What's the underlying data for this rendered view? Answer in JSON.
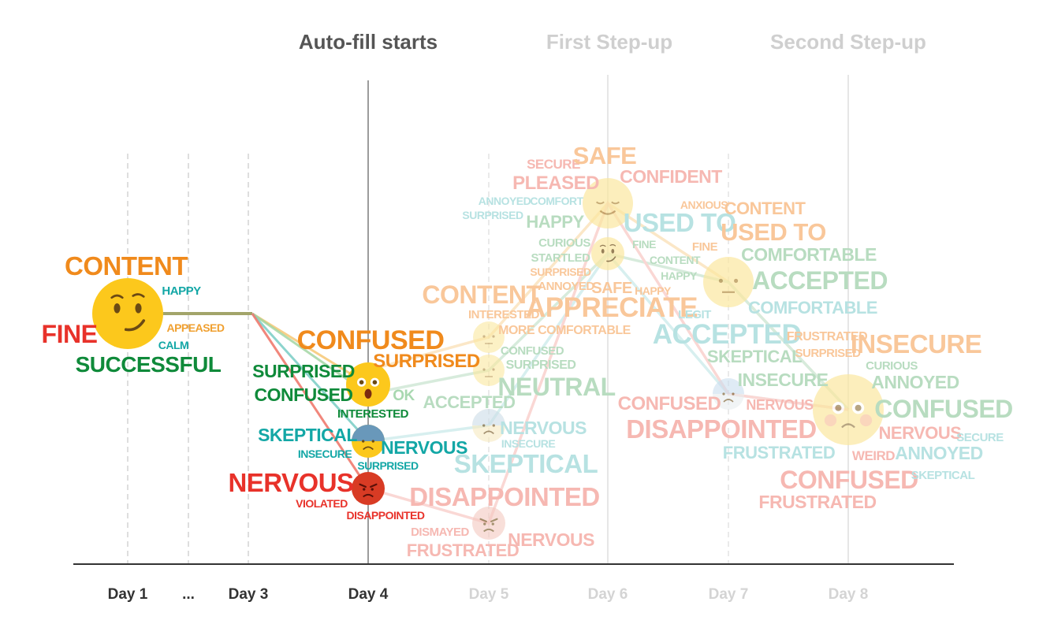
{
  "colors": {
    "orange": "#f08a1c",
    "red": "#e8322a",
    "green": "#0f8a3a",
    "teal": "#13a7a6",
    "olive": "#a2a46a",
    "axis": "#333333",
    "faded": "#cfcfcf"
  },
  "phases": [
    {
      "label": "Auto-fill starts",
      "color": "#555555"
    },
    {
      "label": "First Step-up",
      "color": "#cfcfcf"
    },
    {
      "label": "Second Step-up",
      "color": "#cfcfcf"
    }
  ],
  "days": [
    {
      "label": "Day 1",
      "color": "#333333"
    },
    {
      "label": "...",
      "color": "#333333"
    },
    {
      "label": "Day 3",
      "color": "#333333"
    },
    {
      "label": "Day 4",
      "color": "#333333"
    },
    {
      "label": "Day 5",
      "color": "#d4d4d4"
    },
    {
      "label": "Day 6",
      "color": "#d4d4d4"
    },
    {
      "label": "Day 7",
      "color": "#d4d4d4"
    },
    {
      "label": "Day 8",
      "color": "#d4d4d4"
    }
  ],
  "emojis": [
    {
      "name": "smirk-emoji-icon",
      "face": "smirk",
      "color": "#fcc81c"
    },
    {
      "name": "shocked-emoji-icon",
      "face": "shock",
      "color": "#fcc81c"
    },
    {
      "name": "anxious-emoji-icon",
      "face": "anxious",
      "color": "#fcc81c"
    },
    {
      "name": "angry-emoji-icon",
      "face": "angry",
      "color": "#d83b24"
    },
    {
      "name": "faded-neutral-emoji-1",
      "face": "neutral",
      "color": "#fbe8a0"
    },
    {
      "name": "faded-neutral-emoji-2",
      "face": "neutral",
      "color": "#fbe8a0"
    },
    {
      "name": "faded-anxious-emoji",
      "face": "anxious",
      "color": "#f8eac0"
    },
    {
      "name": "faded-angry-emoji",
      "face": "angry",
      "color": "#f4c9c0"
    },
    {
      "name": "faded-relieved-emoji",
      "face": "relieved",
      "color": "#fbe8a0"
    },
    {
      "name": "faded-smirk-emoji",
      "face": "smirk",
      "color": "#fbe8a0"
    },
    {
      "name": "faded-neutral-emoji-3",
      "face": "neutral",
      "color": "#fbe8a0"
    },
    {
      "name": "faded-anxious-emoji-2",
      "face": "anxious",
      "color": "#e8eef0"
    },
    {
      "name": "faded-worried-emoji",
      "face": "worried",
      "color": "#fbe8a0"
    }
  ],
  "words": [
    {
      "text": "CONTENT",
      "color": "#f08a1c"
    },
    {
      "text": "HAPPY",
      "color": "#13a7a6"
    },
    {
      "text": "FINE",
      "color": "#e8322a"
    },
    {
      "text": "APPEASED",
      "color": "#f0a030"
    },
    {
      "text": "CALM",
      "color": "#13a7a6"
    },
    {
      "text": "SUCCESSFUL",
      "color": "#0f8a3a"
    },
    {
      "text": "CONFUSED",
      "color": "#f08a1c"
    },
    {
      "text": "SURPRISED",
      "color": "#f08a1c"
    },
    {
      "text": "SURPRISED",
      "color": "#0f8a3a"
    },
    {
      "text": "CONFUSED",
      "color": "#0f8a3a"
    },
    {
      "text": "OK",
      "color": "#a8d8b0"
    },
    {
      "text": "INTERESTED",
      "color": "#0f8a3a"
    },
    {
      "text": "SKEPTICAL",
      "color": "#13a7a6"
    },
    {
      "text": "NERVOUS",
      "color": "#13a7a6"
    },
    {
      "text": "INSECURE",
      "color": "#13a7a6"
    },
    {
      "text": "SURPRISED",
      "color": "#13a7a6"
    },
    {
      "text": "NERVOUS",
      "color": "#e8322a"
    },
    {
      "text": "VIOLATED",
      "color": "#e8322a"
    },
    {
      "text": "DISAPPOINTED",
      "color": "#e8322a"
    },
    {
      "text": "SECURE",
      "color": "#f6b8b2"
    },
    {
      "text": "SAFE",
      "color": "#f9c79a"
    },
    {
      "text": "CONFIDENT",
      "color": "#f6b8b2"
    },
    {
      "text": "PLEASED",
      "color": "#f6b8b2"
    },
    {
      "text": "ANNOYED",
      "color": "#b7e2e2"
    },
    {
      "text": "COMFORT",
      "color": "#b7e2e2"
    },
    {
      "text": "SURPRISED",
      "color": "#b7e2e2"
    },
    {
      "text": "HAPPY",
      "color": "#b8dcc0"
    },
    {
      "text": "USED TO",
      "color": "#b7e2e2"
    },
    {
      "text": "CURIOUS",
      "color": "#b8dcc0"
    },
    {
      "text": "FINE",
      "color": "#b8dcc0"
    },
    {
      "text": "STARTLED",
      "color": "#b8dcc0"
    },
    {
      "text": "CONTENT",
      "color": "#b8dcc0"
    },
    {
      "text": "SURPRISED",
      "color": "#f9c79a"
    },
    {
      "text": "HAPPY",
      "color": "#b8dcc0"
    },
    {
      "text": "ANNOYED",
      "color": "#f9c79a"
    },
    {
      "text": "SAFE",
      "color": "#f9c79a"
    },
    {
      "text": "HAPPY",
      "color": "#f9c79a"
    },
    {
      "text": "CONTENT",
      "color": "#f9c79a"
    },
    {
      "text": "APPRECIATE",
      "color": "#f9c79a"
    },
    {
      "text": "INTERESTED",
      "color": "#f9c79a"
    },
    {
      "text": "MORE COMFORTABLE",
      "color": "#f9c79a"
    },
    {
      "text": "LEGIT",
      "color": "#b7e2e2"
    },
    {
      "text": "CONFUSED",
      "color": "#b8dcc0"
    },
    {
      "text": "SURPRISED",
      "color": "#b8dcc0"
    },
    {
      "text": "ACCEPTED",
      "color": "#b8dcc0"
    },
    {
      "text": "NEUTRAL",
      "color": "#b8dcc0"
    },
    {
      "text": "NERVOUS",
      "color": "#b7e2e2"
    },
    {
      "text": "INSECURE",
      "color": "#b7e2e2"
    },
    {
      "text": "SKEPTICAL",
      "color": "#b7e2e2"
    },
    {
      "text": "DISAPPOINTED",
      "color": "#f6b8b2"
    },
    {
      "text": "DISMAYED",
      "color": "#f6b8b2"
    },
    {
      "text": "FRUSTRATED",
      "color": "#f6b8b2"
    },
    {
      "text": "NERVOUS",
      "color": "#f6b8b2"
    },
    {
      "text": "ANXIOUS",
      "color": "#f9c79a"
    },
    {
      "text": "CONTENT",
      "color": "#f9c79a"
    },
    {
      "text": "USED TO",
      "color": "#f9c79a"
    },
    {
      "text": "FINE",
      "color": "#f9c79a"
    },
    {
      "text": "COMFORTABLE",
      "color": "#b8dcc0"
    },
    {
      "text": "ACCEPTED",
      "color": "#b8dcc0"
    },
    {
      "text": "COMFORTABLE",
      "color": "#b7e2e2"
    },
    {
      "text": "ACCEPTED",
      "color": "#b7e2e2"
    },
    {
      "text": "FRUSTRATED",
      "color": "#f9c79a"
    },
    {
      "text": "SURPRISED",
      "color": "#f9c79a"
    },
    {
      "text": "INSECURE",
      "color": "#f9c79a"
    },
    {
      "text": "SKEPTICAL",
      "color": "#b8dcc0"
    },
    {
      "text": "CURIOUS",
      "color": "#b8dcc0"
    },
    {
      "text": "INSECURE",
      "color": "#b8dcc0"
    },
    {
      "text": "ANNOYED",
      "color": "#b8dcc0"
    },
    {
      "text": "CONFUSED",
      "color": "#f6b8b2"
    },
    {
      "text": "NERVOUS",
      "color": "#f6b8b2"
    },
    {
      "text": "DISAPPOINTED",
      "color": "#f6b8b2"
    },
    {
      "text": "CONFUSED",
      "color": "#b8dcc0"
    },
    {
      "text": "NERVOUS",
      "color": "#f6b8b2"
    },
    {
      "text": "SECURE",
      "color": "#b7e2e2"
    },
    {
      "text": "FRUSTRATED",
      "color": "#b7e2e2"
    },
    {
      "text": "WEIRD",
      "color": "#f6b8b2"
    },
    {
      "text": "ANNOYED",
      "color": "#b7e2e2"
    },
    {
      "text": "CONFUSED",
      "color": "#f6b8b2"
    },
    {
      "text": "SKEPTICAL",
      "color": "#b7e2e2"
    },
    {
      "text": "FRUSTRATED",
      "color": "#f6b8b2"
    }
  ]
}
